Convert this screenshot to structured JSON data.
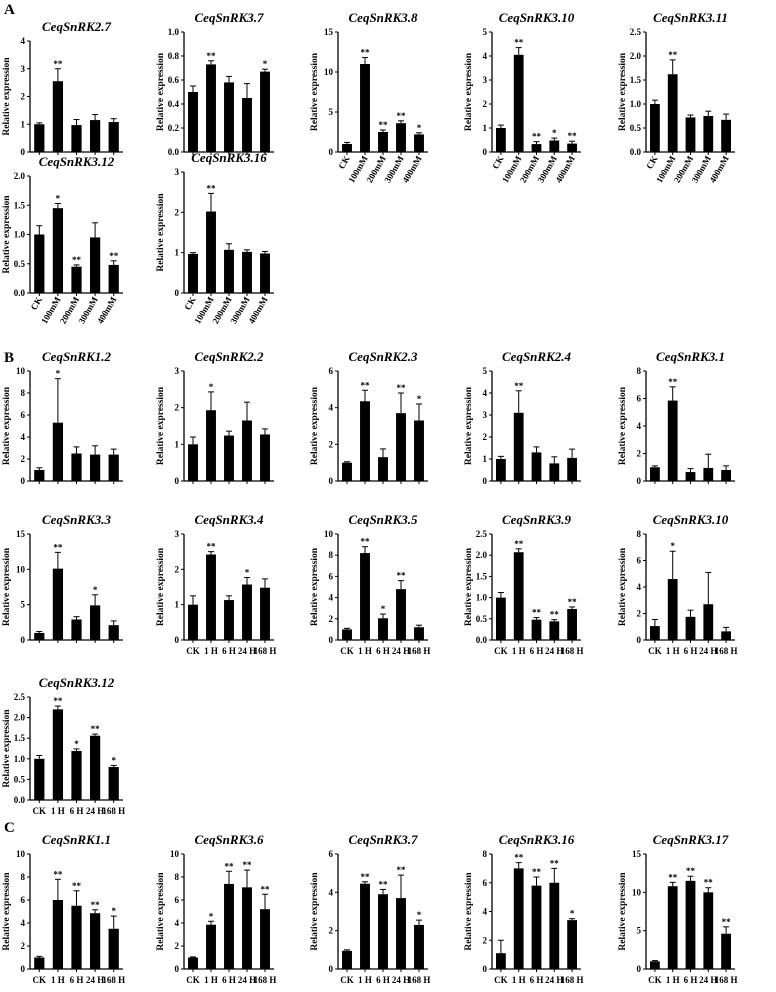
{
  "ylabel": "Relative expression",
  "panels": [
    {
      "letter": "A"
    },
    {
      "letter": "B"
    },
    {
      "letter": "C"
    }
  ],
  "chart_data": [
    {
      "type": "bar",
      "panel": "A",
      "title": "CeqSnRK2.7",
      "categories": [
        "CK",
        "100mM",
        "200mM",
        "300mM",
        "400mM"
      ],
      "values": [
        1.0,
        2.55,
        0.97,
        1.15,
        1.08
      ],
      "errors": [
        0.05,
        0.45,
        0.2,
        0.2,
        0.12
      ],
      "sig": [
        "",
        "**",
        "",
        "",
        ""
      ],
      "ylim": [
        0,
        4
      ],
      "yticks": [
        0,
        1,
        2,
        3,
        4
      ],
      "ylabel": "Relative expression",
      "show_xlabels": false
    },
    {
      "type": "bar",
      "panel": "A",
      "title": "CeqSnRK3.7",
      "categories": [
        "CK",
        "100mM",
        "200mM",
        "300mM",
        "400mM"
      ],
      "values": [
        0.5,
        0.73,
        0.58,
        0.45,
        0.67
      ],
      "errors": [
        0.05,
        0.03,
        0.05,
        0.12,
        0.02
      ],
      "sig": [
        "",
        "**",
        "",
        "",
        "*"
      ],
      "ylim": [
        0,
        1.0
      ],
      "yticks": [
        0,
        0.2,
        0.4,
        0.6,
        0.8,
        1.0
      ],
      "ylabel": "Relative expression",
      "show_xlabels": false
    },
    {
      "type": "bar",
      "panel": "A",
      "title": "CeqSnRK3.8",
      "categories": [
        "CK",
        "100mM",
        "200mM",
        "300mM",
        "400mM"
      ],
      "values": [
        1.0,
        11.0,
        2.5,
        3.6,
        2.2
      ],
      "errors": [
        0.2,
        0.8,
        0.25,
        0.3,
        0.2
      ],
      "sig": [
        "",
        "**",
        "**",
        "**",
        "*"
      ],
      "ylim": [
        0,
        15
      ],
      "yticks": [
        0,
        5,
        10,
        15
      ],
      "ylabel": "Relative expression",
      "show_xlabels": true
    },
    {
      "type": "bar",
      "panel": "A",
      "title": "CeqSnRK3.10",
      "categories": [
        "CK",
        "100mM",
        "200mM",
        "300mM",
        "400mM"
      ],
      "values": [
        1.0,
        4.05,
        0.33,
        0.48,
        0.35
      ],
      "errors": [
        0.12,
        0.3,
        0.1,
        0.1,
        0.1
      ],
      "sig": [
        "",
        "**",
        "**",
        "*",
        "**"
      ],
      "ylim": [
        0,
        5
      ],
      "yticks": [
        0,
        1,
        2,
        3,
        4,
        5
      ],
      "ylabel": "Relative expression",
      "show_xlabels": true
    },
    {
      "type": "bar",
      "panel": "A",
      "title": "CeqSnRK3.11",
      "categories": [
        "CK",
        "100mM",
        "200mM",
        "300mM",
        "400mM"
      ],
      "values": [
        1.0,
        1.62,
        0.72,
        0.75,
        0.67
      ],
      "errors": [
        0.08,
        0.3,
        0.05,
        0.1,
        0.12
      ],
      "sig": [
        "",
        "**",
        "",
        "",
        ""
      ],
      "ylim": [
        0,
        2.5
      ],
      "yticks": [
        0,
        0.5,
        1.0,
        1.5,
        2.0,
        2.5
      ],
      "ylabel": "Relative expression",
      "show_xlabels": true
    },
    {
      "type": "bar",
      "panel": "A",
      "title": "CeqSnRK3.12",
      "categories": [
        "CK",
        "100mM",
        "200mM",
        "300mM",
        "400mM"
      ],
      "values": [
        1.0,
        1.45,
        0.45,
        0.95,
        0.48
      ],
      "errors": [
        0.15,
        0.08,
        0.03,
        0.25,
        0.07
      ],
      "sig": [
        "",
        "*",
        "**",
        "",
        "**"
      ],
      "ylim": [
        0,
        2.0
      ],
      "yticks": [
        0,
        0.5,
        1.0,
        1.5,
        2.0
      ],
      "ylabel": "Relative expression",
      "show_xlabels": true
    },
    {
      "type": "bar",
      "panel": "A",
      "title": "CeqSnRK3.16",
      "categories": [
        "CK",
        "100mM",
        "200mM",
        "300mM",
        "400mM"
      ],
      "values": [
        0.97,
        2.02,
        1.07,
        1.02,
        0.98
      ],
      "errors": [
        0.03,
        0.45,
        0.15,
        0.05,
        0.05
      ],
      "sig": [
        "",
        "**",
        "",
        "",
        ""
      ],
      "ylim": [
        0,
        3
      ],
      "yticks": [
        0,
        1,
        2,
        3
      ],
      "ylabel": "Relative expression",
      "show_xlabels": true
    },
    {
      "type": "bar",
      "panel": "B",
      "title": "CeqSnRK1.2",
      "categories": [
        "CK",
        "1 H",
        "6 H",
        "24 H",
        "168 H"
      ],
      "values": [
        1.0,
        5.3,
        2.5,
        2.4,
        2.4
      ],
      "errors": [
        0.2,
        4.0,
        0.6,
        0.8,
        0.5
      ],
      "sig": [
        "",
        "*",
        "",
        "",
        ""
      ],
      "ylim": [
        0,
        10
      ],
      "yticks": [
        0,
        2,
        4,
        6,
        8,
        10
      ],
      "ylabel": "Relative expression",
      "show_xlabels": false
    },
    {
      "type": "bar",
      "panel": "B",
      "title": "CeqSnRK2.2",
      "categories": [
        "CK",
        "1 H",
        "6 H",
        "24 H",
        "168 H"
      ],
      "values": [
        1.0,
        1.93,
        1.24,
        1.65,
        1.27
      ],
      "errors": [
        0.2,
        0.5,
        0.12,
        0.5,
        0.15
      ],
      "sig": [
        "",
        "*",
        "",
        "",
        ""
      ],
      "ylim": [
        0,
        3
      ],
      "yticks": [
        0,
        1,
        2,
        3
      ],
      "ylabel": "Relative expression",
      "show_xlabels": false
    },
    {
      "type": "bar",
      "panel": "B",
      "title": "CeqSnRK2.3",
      "categories": [
        "CK",
        "1 H",
        "6 H",
        "24 H",
        "168 H"
      ],
      "values": [
        1.0,
        4.35,
        1.3,
        3.7,
        3.3
      ],
      "errors": [
        0.05,
        0.6,
        0.45,
        1.1,
        0.9
      ],
      "sig": [
        "",
        "**",
        "",
        "**",
        "*"
      ],
      "ylim": [
        0,
        6
      ],
      "yticks": [
        0,
        2,
        4,
        6
      ],
      "ylabel": "Relative expression",
      "show_xlabels": false
    },
    {
      "type": "bar",
      "panel": "B",
      "title": "CeqSnRK2.4",
      "categories": [
        "CK",
        "1 H",
        "6 H",
        "24 H",
        "168 H"
      ],
      "values": [
        1.0,
        3.1,
        1.3,
        0.8,
        1.05
      ],
      "errors": [
        0.12,
        1.0,
        0.25,
        0.3,
        0.4
      ],
      "sig": [
        "",
        "**",
        "",
        "",
        ""
      ],
      "ylim": [
        0,
        5
      ],
      "yticks": [
        0,
        1,
        2,
        3,
        4,
        5
      ],
      "ylabel": "Relative expression",
      "show_xlabels": false
    },
    {
      "type": "bar",
      "panel": "B",
      "title": "CeqSnRK3.1",
      "categories": [
        "CK",
        "1 H",
        "6 H",
        "24 H",
        "168 H"
      ],
      "values": [
        1.0,
        5.85,
        0.65,
        0.95,
        0.8
      ],
      "errors": [
        0.1,
        1.0,
        0.25,
        1.0,
        0.3
      ],
      "sig": [
        "",
        "**",
        "",
        "",
        ""
      ],
      "ylim": [
        0,
        8
      ],
      "yticks": [
        0,
        2,
        4,
        6,
        8
      ],
      "ylabel": "Relative expression",
      "show_xlabels": false
    },
    {
      "type": "bar",
      "panel": "B",
      "title": "CeqSnRK3.3",
      "categories": [
        "CK",
        "1 H",
        "6 H",
        "24 H",
        "168 H"
      ],
      "values": [
        1.0,
        10.1,
        2.9,
        4.9,
        2.1
      ],
      "errors": [
        0.2,
        2.3,
        0.4,
        1.5,
        0.6
      ],
      "sig": [
        "",
        "**",
        "",
        "*",
        ""
      ],
      "ylim": [
        0,
        15
      ],
      "yticks": [
        0,
        5,
        10,
        15
      ],
      "ylabel": "Relative expression",
      "show_xlabels": false
    },
    {
      "type": "bar",
      "panel": "B",
      "title": "CeqSnRK3.4",
      "categories": [
        "CK",
        "1 H",
        "6 H",
        "24 H",
        "168 H"
      ],
      "values": [
        1.0,
        2.42,
        1.13,
        1.57,
        1.48
      ],
      "errors": [
        0.25,
        0.08,
        0.12,
        0.2,
        0.25
      ],
      "sig": [
        "",
        "**",
        "",
        "*",
        ""
      ],
      "ylim": [
        0,
        3
      ],
      "yticks": [
        0,
        1,
        2,
        3
      ],
      "ylabel": "Relative expression",
      "show_xlabels": true
    },
    {
      "type": "bar",
      "panel": "B",
      "title": "CeqSnRK3.5",
      "categories": [
        "CK",
        "1 H",
        "6 H",
        "24 H",
        "168 H"
      ],
      "values": [
        1.0,
        8.2,
        2.05,
        4.8,
        1.2
      ],
      "errors": [
        0.1,
        0.6,
        0.4,
        0.8,
        0.2
      ],
      "sig": [
        "",
        "**",
        "*",
        "**",
        ""
      ],
      "ylim": [
        0,
        10
      ],
      "yticks": [
        0,
        2,
        4,
        6,
        8,
        10
      ],
      "ylabel": "Relative expression",
      "show_xlabels": true
    },
    {
      "type": "bar",
      "panel": "B",
      "title": "CeqSnRK3.9",
      "categories": [
        "CK",
        "1 H",
        "6 H",
        "24 H",
        "168 H"
      ],
      "values": [
        1.0,
        2.07,
        0.48,
        0.44,
        0.73
      ],
      "errors": [
        0.12,
        0.08,
        0.05,
        0.04,
        0.05
      ],
      "sig": [
        "",
        "**",
        "**",
        "**",
        "**"
      ],
      "ylim": [
        0,
        2.5
      ],
      "yticks": [
        0,
        0.5,
        1.0,
        1.5,
        2.0,
        2.5
      ],
      "ylabel": "Relative expression",
      "show_xlabels": true
    },
    {
      "type": "bar",
      "panel": "B",
      "title": "CeqSnRK3.10",
      "categories": [
        "CK",
        "1 H",
        "6 H",
        "24 H",
        "168 H"
      ],
      "values": [
        1.05,
        4.6,
        1.75,
        2.7,
        0.65
      ],
      "errors": [
        0.5,
        2.1,
        0.5,
        2.4,
        0.3
      ],
      "sig": [
        "",
        "*",
        "",
        "",
        ""
      ],
      "ylim": [
        0,
        8
      ],
      "yticks": [
        0,
        2,
        4,
        6,
        8
      ],
      "ylabel": "Relative expression",
      "show_xlabels": true
    },
    {
      "type": "bar",
      "panel": "B",
      "title": "CeqSnRK3.12",
      "categories": [
        "CK",
        "1 H",
        "6 H",
        "24 H",
        "168 H"
      ],
      "values": [
        1.0,
        2.2,
        1.19,
        1.56,
        0.8
      ],
      "errors": [
        0.08,
        0.08,
        0.05,
        0.04,
        0.04
      ],
      "sig": [
        "",
        "**",
        "*",
        "**",
        "*"
      ],
      "ylim": [
        0,
        2.5
      ],
      "yticks": [
        0,
        0.5,
        1.0,
        1.5,
        2.0,
        2.5
      ],
      "ylabel": "Relative expression",
      "show_xlabels": true
    },
    {
      "type": "bar",
      "panel": "C",
      "title": "CeqSnRK1.1",
      "categories": [
        "CK",
        "1 H",
        "6 H",
        "24 H",
        "168 H"
      ],
      "values": [
        1.0,
        6.0,
        5.5,
        4.85,
        3.5
      ],
      "errors": [
        0.1,
        1.8,
        1.3,
        0.3,
        1.1
      ],
      "sig": [
        "",
        "**",
        "**",
        "**",
        "*"
      ],
      "ylim": [
        0,
        10
      ],
      "yticks": [
        0,
        2,
        4,
        6,
        8,
        10
      ],
      "ylabel": "Relative expression",
      "show_xlabels": true
    },
    {
      "type": "bar",
      "panel": "C",
      "title": "CeqSnRK3.6",
      "categories": [
        "CK",
        "1 H",
        "6 H",
        "24 H",
        "168 H"
      ],
      "values": [
        1.0,
        3.85,
        7.4,
        7.1,
        5.2
      ],
      "errors": [
        0.05,
        0.3,
        1.1,
        1.5,
        1.3
      ],
      "sig": [
        "",
        "*",
        "**",
        "**",
        "**"
      ],
      "ylim": [
        0,
        10
      ],
      "yticks": [
        0,
        2,
        4,
        6,
        8,
        10
      ],
      "ylabel": "Relative expression",
      "show_xlabels": true
    },
    {
      "type": "bar",
      "panel": "C",
      "title": "CeqSnRK3.7",
      "categories": [
        "CK",
        "1 H",
        "6 H",
        "24 H",
        "168 H"
      ],
      "values": [
        0.95,
        4.45,
        3.9,
        3.7,
        2.3
      ],
      "errors": [
        0.05,
        0.1,
        0.25,
        1.2,
        0.25
      ],
      "sig": [
        "",
        "**",
        "**",
        "**",
        "*"
      ],
      "ylim": [
        0,
        6
      ],
      "yticks": [
        0,
        2,
        4,
        6
      ],
      "ylabel": "Relative expression",
      "show_xlabels": true
    },
    {
      "type": "bar",
      "panel": "C",
      "title": "CeqSnRK3.16",
      "categories": [
        "CK",
        "1 H",
        "6 H",
        "24 H",
        "168 H"
      ],
      "values": [
        1.1,
        7.0,
        5.8,
        6.0,
        3.4
      ],
      "errors": [
        0.9,
        0.4,
        0.6,
        1.0,
        0.1
      ],
      "sig": [
        "",
        "**",
        "**",
        "**",
        "*"
      ],
      "ylim": [
        0,
        8
      ],
      "yticks": [
        0,
        2,
        4,
        6,
        8
      ],
      "ylabel": "Relative expression",
      "show_xlabels": true
    },
    {
      "type": "bar",
      "panel": "C",
      "title": "CeqSnRK3.17",
      "categories": [
        "CK",
        "1 H",
        "6 H",
        "24 H",
        "168 H"
      ],
      "values": [
        1.0,
        10.8,
        11.5,
        10.0,
        4.6
      ],
      "errors": [
        0.1,
        0.5,
        0.6,
        0.6,
        0.9
      ],
      "sig": [
        "",
        "**",
        "**",
        "**",
        "**"
      ],
      "ylim": [
        0,
        15
      ],
      "yticks": [
        0,
        5,
        10,
        15
      ],
      "ylabel": "Relative expression",
      "show_xlabels": true
    }
  ]
}
